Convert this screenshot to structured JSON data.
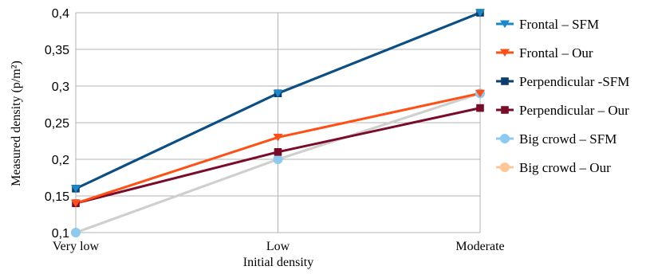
{
  "chart_data": {
    "type": "line",
    "categories": [
      "Very low",
      "Low",
      "Moderate"
    ],
    "xlabel": "Initial density",
    "ylabel": "Measured density (p/m²)",
    "ylim": [
      0.1,
      0.4
    ],
    "y_ticks": [
      "0,1",
      "0,15",
      "0,2",
      "0,25",
      "0,3",
      "0,35",
      "0,4"
    ],
    "y_tick_values": [
      0.1,
      0.15,
      0.2,
      0.25,
      0.3,
      0.35,
      0.4
    ],
    "grid": true,
    "legend_position": "right",
    "series": [
      {
        "name": "Frontal – SFM",
        "values": [
          0.16,
          0.29,
          0.4
        ],
        "color": "#1a87c9",
        "line_color": "#0b4f84",
        "marker": "triangle-down"
      },
      {
        "name": "Frontal – Our",
        "values": [
          0.14,
          0.23,
          0.29
        ],
        "color": "#ff4f14",
        "line_color": "#ff4f14",
        "marker": "triangle-down"
      },
      {
        "name": "Perpendicular -SFM",
        "values": [
          0.16,
          0.29,
          0.4
        ],
        "color": "#0b3f6e",
        "line_color": "#0b4f84",
        "marker": "square"
      },
      {
        "name": "Perpendicular – Our",
        "values": [
          0.14,
          0.21,
          0.27
        ],
        "color": "#7a0b2a",
        "line_color": "#7a0b2a",
        "marker": "square"
      },
      {
        "name": "Big crowd – SFM",
        "values": [
          0.1,
          0.2,
          0.29
        ],
        "color": "#8ccaf2",
        "line_color": "#cfcfcf",
        "marker": "circle"
      },
      {
        "name": "Big crowd – Our",
        "values": [
          0.1,
          0.2,
          0.29
        ],
        "color": "#ffc796",
        "line_color": "#d5d0c8",
        "marker": "circle"
      }
    ]
  }
}
